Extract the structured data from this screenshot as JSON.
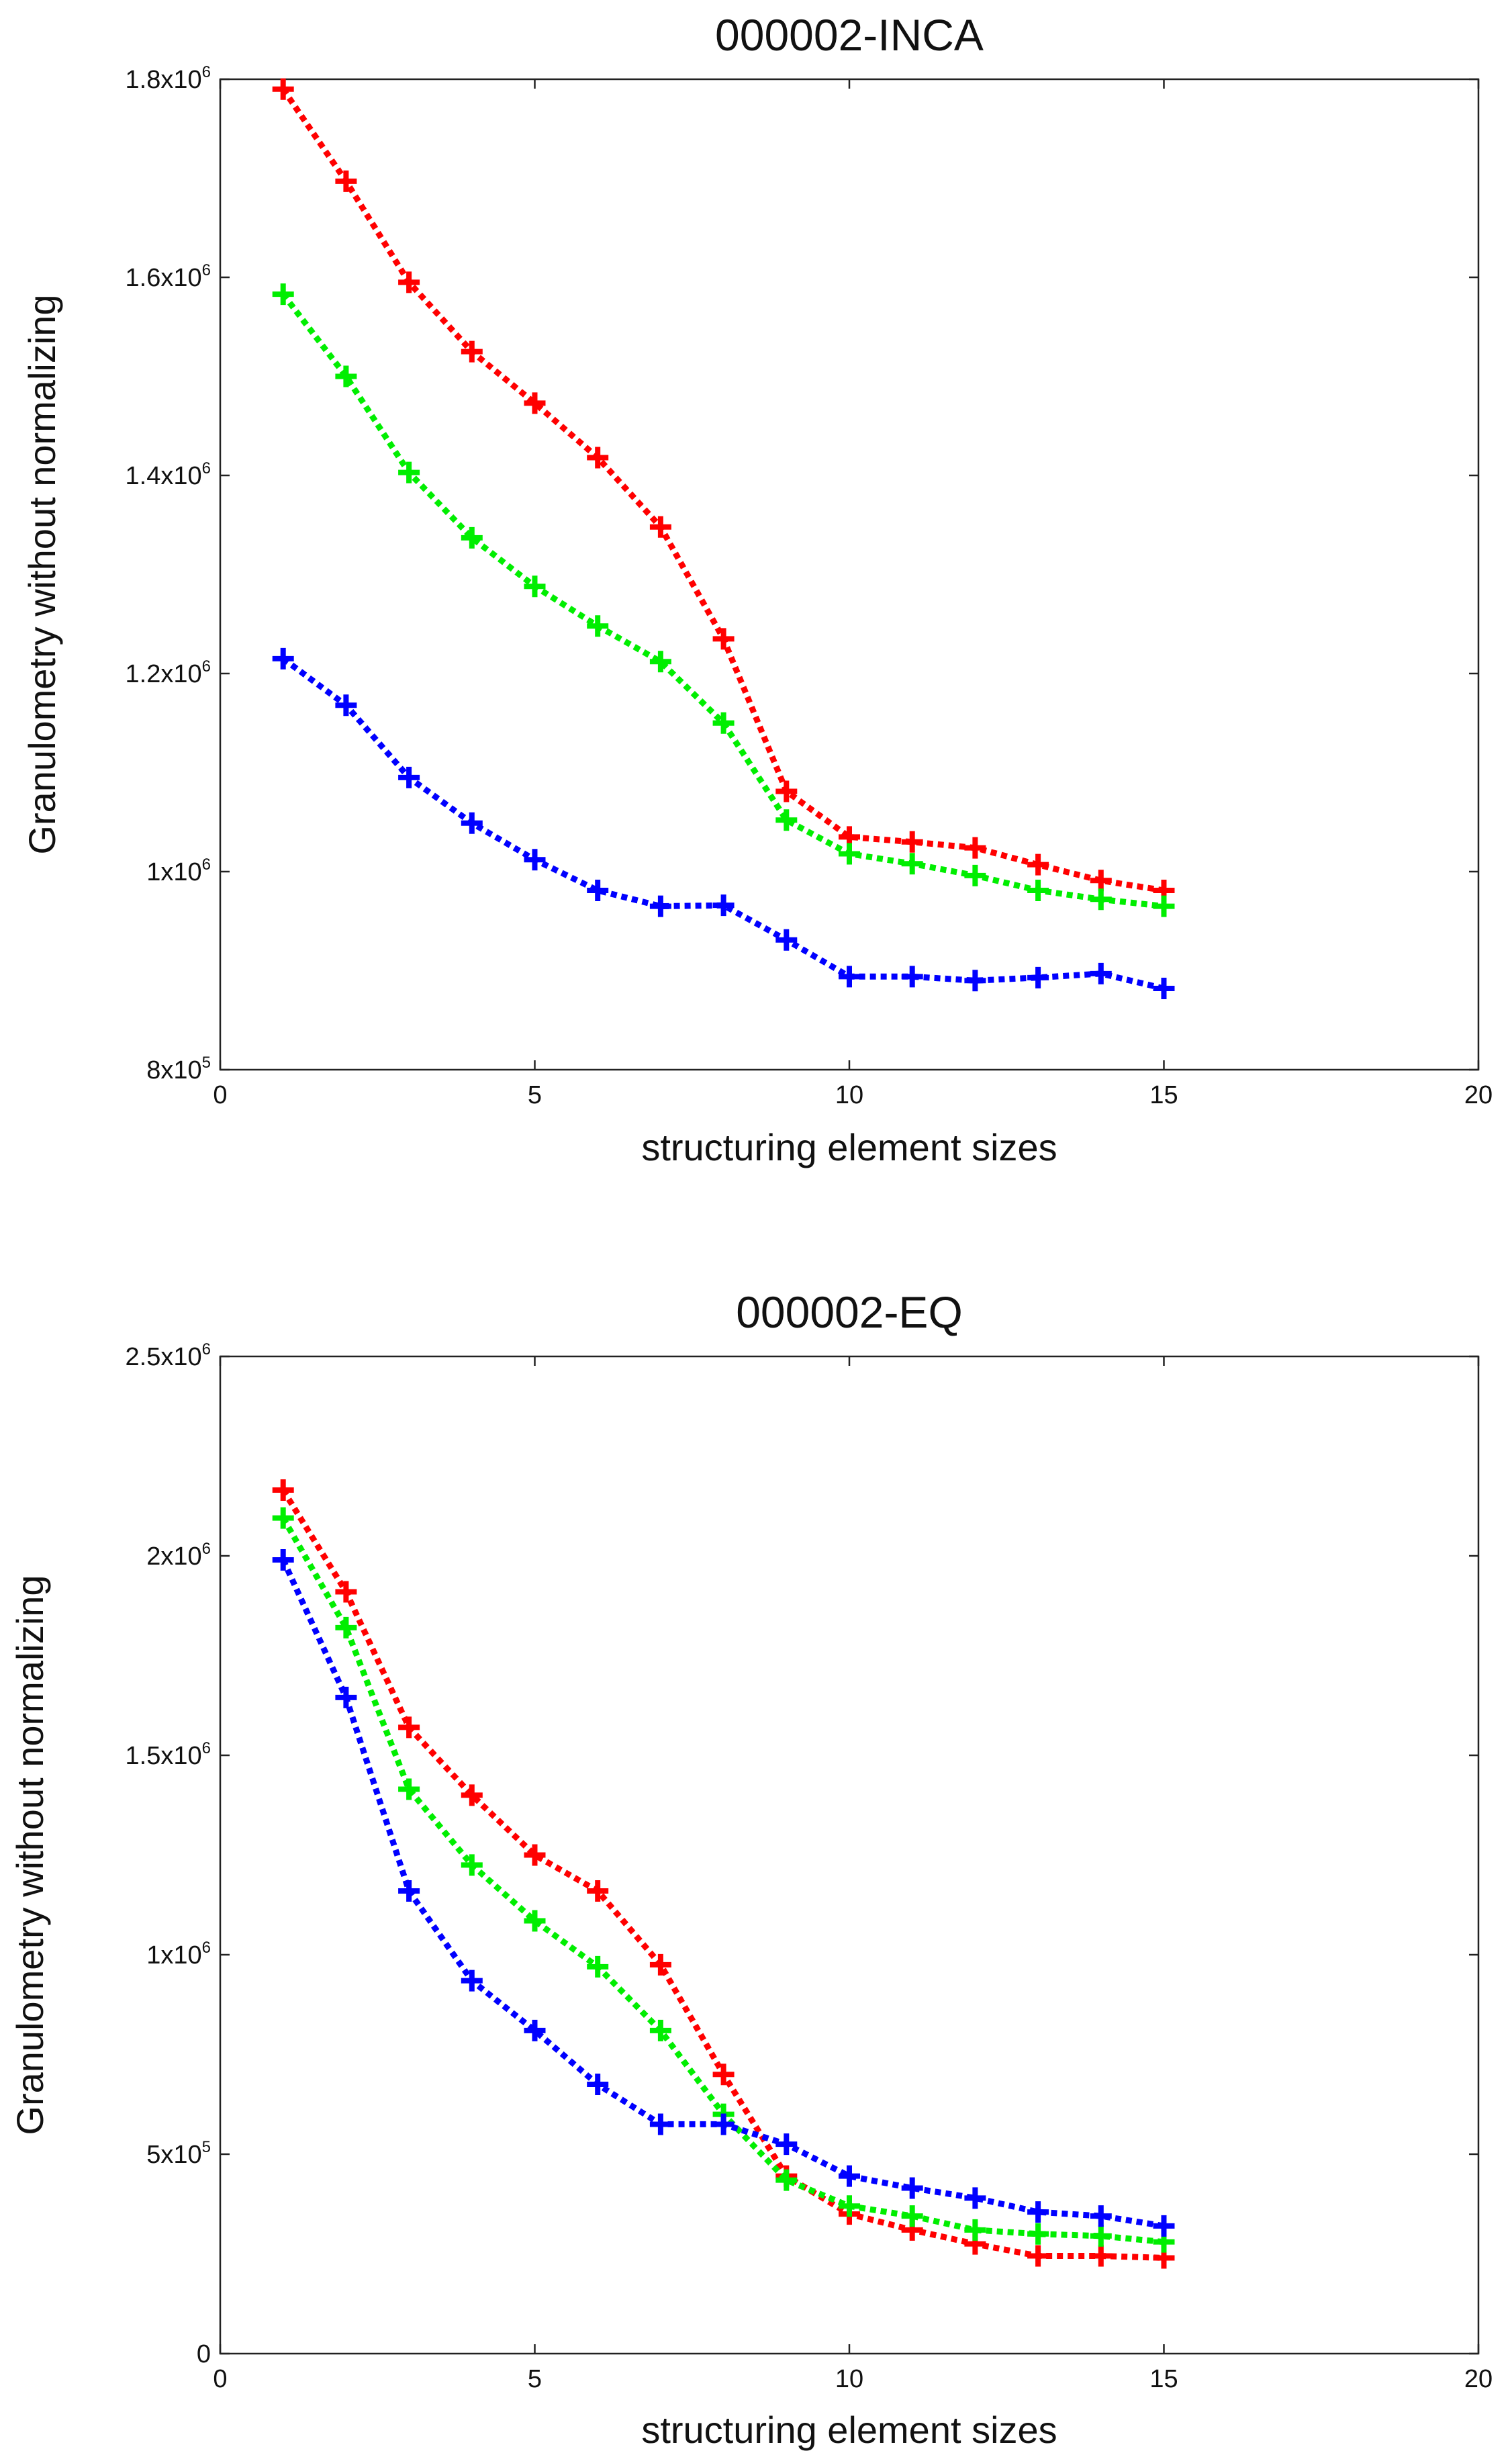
{
  "chart_data": [
    {
      "type": "line",
      "title": "000002-INCA",
      "xlabel": "structuring element sizes",
      "ylabel": "Granulometry without normalizing",
      "xlim": [
        0,
        20
      ],
      "ylim": [
        800000,
        1800000
      ],
      "grid": false,
      "x_ticks": [
        {
          "value": 0,
          "label": "0"
        },
        {
          "value": 5,
          "label": "5"
        },
        {
          "value": 10,
          "label": "10"
        },
        {
          "value": 15,
          "label": "15"
        },
        {
          "value": 20,
          "label": "20"
        }
      ],
      "y_ticks": [
        {
          "value": 800000,
          "base": "8x10",
          "exp": "5"
        },
        {
          "value": 1000000,
          "base": "1x10",
          "exp": "6"
        },
        {
          "value": 1200000,
          "base": "1.2x10",
          "exp": "6"
        },
        {
          "value": 1400000,
          "base": "1.4x10",
          "exp": "6"
        },
        {
          "value": 1600000,
          "base": "1.6x10",
          "exp": "6"
        },
        {
          "value": 1800000,
          "base": "1.8x10",
          "exp": "6"
        }
      ],
      "x": [
        1,
        2,
        3,
        4,
        5,
        6,
        7,
        8,
        9,
        10,
        11,
        12,
        13,
        14,
        15
      ],
      "series": [
        {
          "name": "red",
          "color": "#ff0000",
          "values": [
            1790000,
            1697000,
            1595000,
            1525000,
            1473000,
            1418000,
            1348000,
            1235000,
            1081000,
            1035000,
            1030000,
            1024000,
            1007000,
            991000,
            981000
          ]
        },
        {
          "name": "green",
          "color": "#00ee00",
          "values": [
            1583000,
            1500000,
            1403000,
            1337000,
            1288000,
            1248000,
            1212000,
            1150000,
            1052000,
            1018000,
            1008000,
            996000,
            981000,
            972000,
            965000
          ]
        },
        {
          "name": "blue",
          "color": "#0000ff",
          "values": [
            1215000,
            1168000,
            1095000,
            1049000,
            1012000,
            981000,
            965000,
            966000,
            931000,
            894000,
            894000,
            890000,
            893000,
            897000,
            882000
          ]
        }
      ]
    },
    {
      "type": "line",
      "title": "000002-EQ",
      "xlabel": "structuring element sizes",
      "ylabel": "Granulometry without normalizing",
      "xlim": [
        0,
        20
      ],
      "ylim": [
        0,
        2500000
      ],
      "grid": false,
      "x_ticks": [
        {
          "value": 0,
          "label": "0"
        },
        {
          "value": 5,
          "label": "5"
        },
        {
          "value": 10,
          "label": "10"
        },
        {
          "value": 15,
          "label": "15"
        },
        {
          "value": 20,
          "label": "20"
        }
      ],
      "y_ticks": [
        {
          "value": 0,
          "base": "0",
          "exp": ""
        },
        {
          "value": 500000,
          "base": "5x10",
          "exp": "5"
        },
        {
          "value": 1000000,
          "base": "1x10",
          "exp": "6"
        },
        {
          "value": 1500000,
          "base": "1.5x10",
          "exp": "6"
        },
        {
          "value": 2000000,
          "base": "2x10",
          "exp": "6"
        },
        {
          "value": 2500000,
          "base": "2.5x10",
          "exp": "6"
        }
      ],
      "x": [
        1,
        2,
        3,
        4,
        5,
        6,
        7,
        8,
        9,
        10,
        11,
        12,
        13,
        14,
        15
      ],
      "series": [
        {
          "name": "red",
          "color": "#ff0000",
          "values": [
            2165000,
            1910000,
            1570000,
            1400000,
            1250000,
            1160000,
            975000,
            700000,
            445000,
            350000,
            310000,
            275000,
            245000,
            245000,
            240000
          ]
        },
        {
          "name": "green",
          "color": "#00ee00",
          "values": [
            2095000,
            1820000,
            1415000,
            1225000,
            1085000,
            970000,
            810000,
            600000,
            435000,
            370000,
            345000,
            310000,
            300000,
            295000,
            280000
          ]
        },
        {
          "name": "blue",
          "color": "#0000ff",
          "values": [
            1990000,
            1645000,
            1160000,
            935000,
            810000,
            675000,
            575000,
            575000,
            525000,
            445000,
            415000,
            390000,
            355000,
            345000,
            320000
          ]
        }
      ]
    }
  ]
}
